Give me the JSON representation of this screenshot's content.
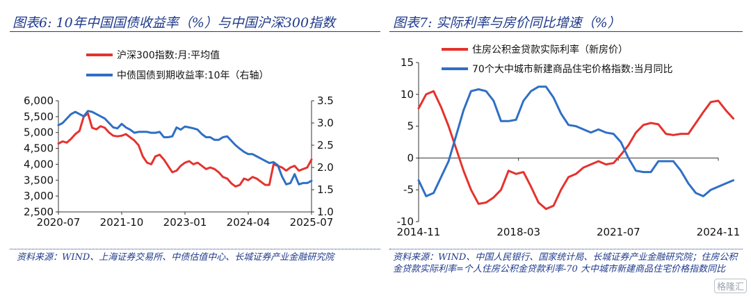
{
  "charts": [
    {
      "title": "图表6:  10年中国国债收益率（%）与中国沪深300指数",
      "source": "资料来源：WIND、上海证券交易所、中债估值中心、长城证券产业金融研究院"
    },
    {
      "title": "图表7:  实际利率与房价同比增速（%）",
      "source": "资料来源：WIND、中国人民银行、国家统计局、长城证券产业金融研究院；住房公积金贷款实际利率=个人住房公积金贷款利率-70 大中城市新建商品住宅价格指数同比"
    }
  ],
  "watermark": "格隆汇",
  "chart_data": [
    {
      "type": "line",
      "x_ticks": [
        "2020-07",
        "2021-10",
        "2023-01",
        "2024-04",
        "2025-07"
      ],
      "y_left": {
        "ticks": [
          "2,500",
          "3,000",
          "3,500",
          "4,000",
          "4,500",
          "5,000",
          "5,500",
          "6,000"
        ],
        "ylim": [
          2500,
          6000
        ]
      },
      "y_right": {
        "ticks": [
          "1.0",
          "1.5",
          "2.0",
          "2.5",
          "3.0",
          "3.5"
        ],
        "ylim": [
          1.0,
          3.5
        ]
      },
      "legend_position": "top-left",
      "series": [
        {
          "name": "沪深300指数:月:平均值",
          "axis": "left",
          "color": "#e5322d",
          "x": [
            "2020-07",
            "2020-08",
            "2020-09",
            "2020-10",
            "2020-11",
            "2020-12",
            "2021-01",
            "2021-02",
            "2021-03",
            "2021-04",
            "2021-05",
            "2021-06",
            "2021-07",
            "2021-08",
            "2021-09",
            "2021-10",
            "2021-11",
            "2021-12",
            "2022-01",
            "2022-02",
            "2022-03",
            "2022-04",
            "2022-05",
            "2022-06",
            "2022-07",
            "2022-08",
            "2022-09",
            "2022-10",
            "2022-11",
            "2022-12",
            "2023-01",
            "2023-02",
            "2023-03",
            "2023-04",
            "2023-05",
            "2023-06",
            "2023-07",
            "2023-08",
            "2023-09",
            "2023-10",
            "2023-11",
            "2023-12",
            "2024-01",
            "2024-02",
            "2024-03",
            "2024-04",
            "2024-05",
            "2024-06",
            "2024-07",
            "2024-08",
            "2024-09",
            "2024-10",
            "2024-11",
            "2024-12",
            "2025-01",
            "2025-02",
            "2025-03",
            "2025-04",
            "2025-05",
            "2025-06",
            "2025-07"
          ],
          "values": [
            4650,
            4720,
            4680,
            4800,
            4950,
            5050,
            5500,
            5600,
            5150,
            5100,
            5200,
            5150,
            5000,
            4900,
            4880,
            4900,
            4950,
            4850,
            4750,
            4600,
            4250,
            4050,
            4000,
            4250,
            4300,
            4150,
            3950,
            3750,
            3800,
            3950,
            4050,
            4100,
            4000,
            4050,
            3950,
            3850,
            3900,
            3850,
            3750,
            3600,
            3550,
            3400,
            3300,
            3350,
            3550,
            3500,
            3600,
            3550,
            3450,
            3350,
            3350,
            4000,
            3950,
            3900,
            3800,
            3900,
            3950,
            3800,
            3850,
            3900,
            4150
          ]
        },
        {
          "name": "中债国债到期收益率:10年（右轴）",
          "axis": "right",
          "color": "#2e6fc4",
          "x": [
            "2020-07",
            "2020-08",
            "2020-09",
            "2020-10",
            "2020-11",
            "2020-12",
            "2021-01",
            "2021-02",
            "2021-03",
            "2021-04",
            "2021-05",
            "2021-06",
            "2021-07",
            "2021-08",
            "2021-09",
            "2021-10",
            "2021-11",
            "2021-12",
            "2022-01",
            "2022-02",
            "2022-03",
            "2022-04",
            "2022-05",
            "2022-06",
            "2022-07",
            "2022-08",
            "2022-09",
            "2022-10",
            "2022-11",
            "2022-12",
            "2023-01",
            "2023-02",
            "2023-03",
            "2023-04",
            "2023-05",
            "2023-06",
            "2023-07",
            "2023-08",
            "2023-09",
            "2023-10",
            "2023-11",
            "2023-12",
            "2024-01",
            "2024-02",
            "2024-03",
            "2024-04",
            "2024-05",
            "2024-06",
            "2024-07",
            "2024-08",
            "2024-09",
            "2024-10",
            "2024-11",
            "2024-12",
            "2025-01",
            "2025-02",
            "2025-03",
            "2025-04",
            "2025-05",
            "2025-06",
            "2025-07"
          ],
          "values": [
            2.95,
            3.0,
            3.1,
            3.2,
            3.25,
            3.2,
            3.15,
            3.27,
            3.25,
            3.2,
            3.15,
            3.1,
            3.0,
            2.9,
            2.88,
            2.98,
            2.9,
            2.85,
            2.78,
            2.8,
            2.8,
            2.8,
            2.78,
            2.78,
            2.8,
            2.68,
            2.68,
            2.7,
            2.9,
            2.85,
            2.92,
            2.9,
            2.88,
            2.85,
            2.75,
            2.68,
            2.68,
            2.62,
            2.62,
            2.68,
            2.7,
            2.6,
            2.5,
            2.42,
            2.35,
            2.3,
            2.3,
            2.25,
            2.2,
            2.15,
            2.1,
            2.12,
            2.05,
            1.8,
            1.62,
            1.65,
            1.85,
            1.62,
            1.65,
            1.65,
            1.7
          ]
        }
      ]
    },
    {
      "type": "line",
      "x_ticks": [
        "2014-11",
        "2018-03",
        "2021-07",
        "2024-11"
      ],
      "y_left": {
        "ticks": [
          "-10",
          "-5",
          "0",
          "5",
          "10",
          "15"
        ],
        "ylim": [
          -10,
          15
        ]
      },
      "legend_position": "top",
      "series": [
        {
          "name": "住房公积金贷款实际利率（新房价）",
          "color": "#e5322d",
          "x": [
            "2014-11",
            "2015-02",
            "2015-05",
            "2015-08",
            "2015-11",
            "2016-02",
            "2016-05",
            "2016-08",
            "2016-11",
            "2017-02",
            "2017-05",
            "2017-08",
            "2017-11",
            "2018-02",
            "2018-05",
            "2018-08",
            "2018-11",
            "2019-02",
            "2019-05",
            "2019-08",
            "2019-11",
            "2020-02",
            "2020-05",
            "2020-08",
            "2020-11",
            "2021-02",
            "2021-05",
            "2021-08",
            "2021-11",
            "2022-02",
            "2022-05",
            "2022-08",
            "2022-11",
            "2023-02",
            "2023-05",
            "2023-08",
            "2023-11",
            "2024-02",
            "2024-05",
            "2024-08",
            "2024-11",
            "2025-02",
            "2025-05"
          ],
          "values": [
            7.8,
            10.0,
            10.5,
            8.0,
            5.0,
            1.5,
            -2.0,
            -5.0,
            -7.2,
            -7.0,
            -6.2,
            -5.0,
            -2.0,
            -2.5,
            -2.2,
            -4.5,
            -7.0,
            -8.0,
            -7.5,
            -5.0,
            -3.0,
            -2.5,
            -1.5,
            -1.0,
            -0.5,
            -1.0,
            -0.8,
            0.5,
            2.0,
            4.0,
            5.2,
            5.5,
            5.3,
            3.8,
            3.6,
            3.8,
            3.8,
            5.5,
            7.2,
            8.8,
            9.0,
            7.5,
            6.2
          ]
        },
        {
          "name": "70个大中城市新建商品住宅价格指数:当月同比",
          "color": "#2e6fc4",
          "x": [
            "2014-11",
            "2015-02",
            "2015-05",
            "2015-08",
            "2015-11",
            "2016-02",
            "2016-05",
            "2016-08",
            "2016-11",
            "2017-02",
            "2017-05",
            "2017-08",
            "2017-11",
            "2018-02",
            "2018-05",
            "2018-08",
            "2018-11",
            "2019-02",
            "2019-05",
            "2019-08",
            "2019-11",
            "2020-02",
            "2020-05",
            "2020-08",
            "2020-11",
            "2021-02",
            "2021-05",
            "2021-08",
            "2021-11",
            "2022-02",
            "2022-05",
            "2022-08",
            "2022-11",
            "2023-02",
            "2023-05",
            "2023-08",
            "2023-11",
            "2024-02",
            "2024-05",
            "2024-08",
            "2024-11",
            "2025-02",
            "2025-05"
          ],
          "values": [
            -3.5,
            -6.0,
            -5.5,
            -3.0,
            -0.5,
            3.5,
            7.5,
            10.5,
            10.8,
            10.5,
            9.0,
            5.8,
            5.8,
            6.0,
            9.0,
            10.5,
            11.2,
            11.2,
            9.5,
            7.0,
            5.2,
            5.0,
            4.5,
            4.0,
            4.5,
            4.0,
            3.8,
            2.5,
            0.0,
            -2.0,
            -2.2,
            -2.2,
            -0.5,
            -0.5,
            -0.5,
            -2.0,
            -4.0,
            -5.5,
            -6.0,
            -5.0,
            -4.5,
            -4.0,
            -3.5
          ]
        }
      ]
    }
  ]
}
